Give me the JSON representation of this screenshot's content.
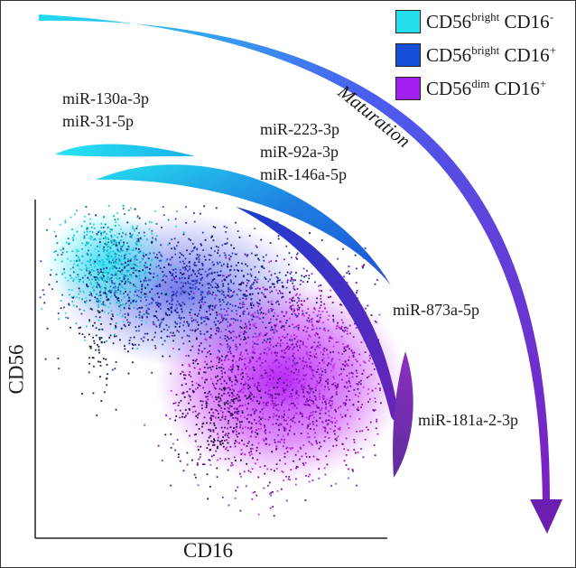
{
  "legend": [
    {
      "prefix": "CD56",
      "sup1": "bright",
      "mid": " CD16",
      "sup2": "-",
      "color": "#22e0ec"
    },
    {
      "prefix": "CD56",
      "sup1": "bright",
      "mid": " CD16",
      "sup2": "+",
      "color": "#1650d8"
    },
    {
      "prefix": "CD56",
      "sup1": "dim",
      "mid": " CD16",
      "sup2": "+",
      "color": "#a31ff0"
    }
  ],
  "arrow_label": "Maturation",
  "axes": {
    "x": "CD16",
    "y": "CD56"
  },
  "mirnas": {
    "group1": [
      "miR-130a-3p",
      "miR-31-5p"
    ],
    "group2": [
      "miR-223-3p",
      "miR-92a-3p",
      "miR-146a-5p"
    ],
    "group3": [
      "miR-873a-5p"
    ],
    "group4": [
      "miR-181a-2-3p"
    ]
  },
  "colors": {
    "cyan": "#22e0ec",
    "blue": "#1650d8",
    "purple": "#a31ff0",
    "arrow_end": "#6a1fb0"
  }
}
